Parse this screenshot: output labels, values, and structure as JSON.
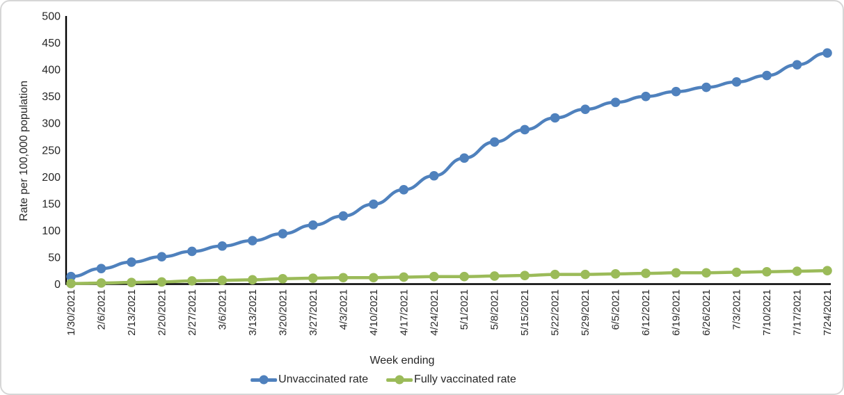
{
  "figure": {
    "y_axis_title": "Rate per 100,000 population",
    "x_axis_title": "Week ending"
  },
  "chart_data": {
    "type": "line",
    "title": "",
    "xlabel": "Week ending",
    "ylabel": "Rate per 100,000 population",
    "ylim": [
      0,
      500
    ],
    "y_ticks": [
      0,
      50,
      100,
      150,
      200,
      250,
      300,
      350,
      400,
      450,
      500
    ],
    "grid": false,
    "marker": "circle",
    "legend_position": "bottom",
    "categories": [
      "1/30/2021",
      "2/6/2021",
      "2/13/2021",
      "2/20/2021",
      "2/27/2021",
      "3/6/2021",
      "3/13/2021",
      "3/20/2021",
      "3/27/2021",
      "4/3/2021",
      "4/10/2021",
      "4/17/2021",
      "4/24/2021",
      "5/1/2021",
      "5/8/2021",
      "5/15/2021",
      "5/22/2021",
      "5/29/2021",
      "6/5/2021",
      "6/12/2021",
      "6/19/2021",
      "6/26/2021",
      "7/3/2021",
      "7/10/2021",
      "7/17/2021",
      "7/24/2021"
    ],
    "series": [
      {
        "name": "Unvaccinated rate",
        "color": "#4f81bd",
        "values": [
          14,
          29,
          41,
          51,
          61,
          71,
          81,
          94,
          110,
          127,
          149,
          176,
          202,
          235,
          265,
          288,
          310,
          326,
          339,
          350,
          359,
          367,
          377,
          389,
          409,
          431
        ]
      },
      {
        "name": "Fully vaccinated rate",
        "color": "#9bbb59",
        "values": [
          1,
          2,
          3,
          4,
          6,
          7,
          8,
          10,
          11,
          12,
          12,
          13,
          14,
          14,
          15,
          16,
          18,
          18,
          19,
          20,
          21,
          21,
          22,
          23,
          24,
          25
        ]
      }
    ]
  }
}
